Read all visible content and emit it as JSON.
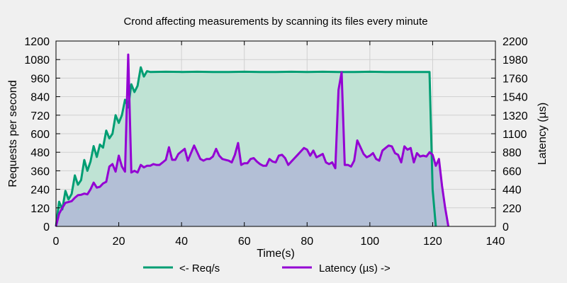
{
  "chart_data": {
    "type": "area",
    "title": "Crond affecting measurements by scanning its files every minute",
    "xlabel": "Time(s)",
    "ylabel_left": "Requests per second",
    "ylabel_right": "Latency (µs)",
    "xlim": [
      0,
      140
    ],
    "ylim_left": [
      0,
      1200
    ],
    "ylim_right": [
      0,
      2200
    ],
    "x_ticks": [
      0,
      20,
      40,
      60,
      80,
      100,
      120,
      140
    ],
    "y_left_ticks": [
      0,
      120,
      240,
      360,
      480,
      600,
      720,
      840,
      960,
      1080,
      1200
    ],
    "y_right_ticks": [
      0,
      220,
      440,
      660,
      880,
      1100,
      1320,
      1540,
      1760,
      1980,
      2200
    ],
    "grid": true,
    "legend_position": "bottom",
    "series": [
      {
        "name": "<- Req/s",
        "axis": "left",
        "color": "#009e73",
        "fill": "#bfe3d4",
        "points": [
          [
            0,
            0
          ],
          [
            1,
            160
          ],
          [
            2,
            110
          ],
          [
            3,
            230
          ],
          [
            4,
            175
          ],
          [
            5,
            210
          ],
          [
            6,
            330
          ],
          [
            7,
            270
          ],
          [
            8,
            300
          ],
          [
            9,
            430
          ],
          [
            10,
            360
          ],
          [
            11,
            420
          ],
          [
            12,
            520
          ],
          [
            13,
            450
          ],
          [
            14,
            530
          ],
          [
            15,
            510
          ],
          [
            16,
            620
          ],
          [
            17,
            570
          ],
          [
            18,
            600
          ],
          [
            19,
            720
          ],
          [
            20,
            670
          ],
          [
            21,
            720
          ],
          [
            22,
            820
          ],
          [
            23,
            770
          ],
          [
            24,
            920
          ],
          [
            25,
            870
          ],
          [
            26,
            910
          ],
          [
            27,
            1030
          ],
          [
            28,
            970
          ],
          [
            29,
            1005
          ],
          [
            30,
            1000
          ],
          [
            35,
            1001
          ],
          [
            40,
            1000
          ],
          [
            45,
            1001
          ],
          [
            50,
            1000
          ],
          [
            55,
            1000
          ],
          [
            60,
            1001
          ],
          [
            65,
            1000
          ],
          [
            70,
            1000
          ],
          [
            75,
            1001
          ],
          [
            80,
            1000
          ],
          [
            85,
            1001
          ],
          [
            90,
            1000
          ],
          [
            95,
            1000
          ],
          [
            100,
            1001
          ],
          [
            105,
            1000
          ],
          [
            110,
            1000
          ],
          [
            115,
            1000
          ],
          [
            119,
            1000
          ],
          [
            120,
            240
          ],
          [
            121,
            0
          ]
        ]
      },
      {
        "name": "Latency (µs) ->",
        "axis": "right",
        "color": "#9400d3",
        "fill": "#b0b8d6",
        "points": [
          [
            0,
            0
          ],
          [
            1,
            150
          ],
          [
            2,
            220
          ],
          [
            3,
            280
          ],
          [
            4,
            290
          ],
          [
            5,
            300
          ],
          [
            6,
            340
          ],
          [
            7,
            370
          ],
          [
            8,
            375
          ],
          [
            9,
            390
          ],
          [
            10,
            380
          ],
          [
            11,
            440
          ],
          [
            12,
            520
          ],
          [
            13,
            460
          ],
          [
            14,
            470
          ],
          [
            15,
            510
          ],
          [
            16,
            530
          ],
          [
            17,
            710
          ],
          [
            18,
            740
          ],
          [
            19,
            650
          ],
          [
            20,
            840
          ],
          [
            21,
            710
          ],
          [
            22,
            650
          ],
          [
            23,
            2040
          ],
          [
            24,
            640
          ],
          [
            25,
            660
          ],
          [
            26,
            640
          ],
          [
            27,
            730
          ],
          [
            28,
            700
          ],
          [
            29,
            720
          ],
          [
            30,
            720
          ],
          [
            31,
            740
          ],
          [
            32,
            730
          ],
          [
            33,
            730
          ],
          [
            34,
            760
          ],
          [
            35,
            790
          ],
          [
            36,
            940
          ],
          [
            37,
            790
          ],
          [
            38,
            790
          ],
          [
            39,
            860
          ],
          [
            40,
            890
          ],
          [
            41,
            920
          ],
          [
            42,
            780
          ],
          [
            43,
            870
          ],
          [
            44,
            960
          ],
          [
            45,
            880
          ],
          [
            46,
            800
          ],
          [
            47,
            780
          ],
          [
            48,
            800
          ],
          [
            49,
            800
          ],
          [
            50,
            830
          ],
          [
            51,
            920
          ],
          [
            52,
            840
          ],
          [
            53,
            800
          ],
          [
            54,
            790
          ],
          [
            55,
            780
          ],
          [
            56,
            760
          ],
          [
            57,
            850
          ],
          [
            58,
            990
          ],
          [
            59,
            730
          ],
          [
            60,
            750
          ],
          [
            61,
            750
          ],
          [
            62,
            800
          ],
          [
            63,
            810
          ],
          [
            64,
            770
          ],
          [
            65,
            740
          ],
          [
            66,
            720
          ],
          [
            67,
            720
          ],
          [
            68,
            800
          ],
          [
            69,
            770
          ],
          [
            70,
            760
          ],
          [
            71,
            840
          ],
          [
            72,
            850
          ],
          [
            73,
            810
          ],
          [
            74,
            730
          ],
          [
            75,
            770
          ],
          [
            76,
            810
          ],
          [
            77,
            850
          ],
          [
            78,
            890
          ],
          [
            79,
            930
          ],
          [
            80,
            910
          ],
          [
            81,
            840
          ],
          [
            82,
            900
          ],
          [
            83,
            820
          ],
          [
            84,
            840
          ],
          [
            85,
            860
          ],
          [
            86,
            760
          ],
          [
            87,
            740
          ],
          [
            88,
            760
          ],
          [
            89,
            690
          ],
          [
            90,
            1620
          ],
          [
            91,
            1830
          ],
          [
            92,
            730
          ],
          [
            93,
            730
          ],
          [
            94,
            710
          ],
          [
            95,
            780
          ],
          [
            96,
            1020
          ],
          [
            97,
            940
          ],
          [
            98,
            860
          ],
          [
            99,
            820
          ],
          [
            100,
            840
          ],
          [
            101,
            870
          ],
          [
            102,
            800
          ],
          [
            103,
            780
          ],
          [
            104,
            900
          ],
          [
            105,
            930
          ],
          [
            106,
            960
          ],
          [
            107,
            950
          ],
          [
            108,
            870
          ],
          [
            109,
            850
          ],
          [
            110,
            760
          ],
          [
            111,
            950
          ],
          [
            112,
            910
          ],
          [
            113,
            930
          ],
          [
            114,
            760
          ],
          [
            115,
            870
          ],
          [
            116,
            830
          ],
          [
            117,
            840
          ],
          [
            118,
            830
          ],
          [
            119,
            880
          ],
          [
            120,
            850
          ],
          [
            121,
            720
          ],
          [
            122,
            800
          ],
          [
            123,
            480
          ],
          [
            124,
            220
          ],
          [
            125,
            0
          ]
        ]
      }
    ]
  }
}
